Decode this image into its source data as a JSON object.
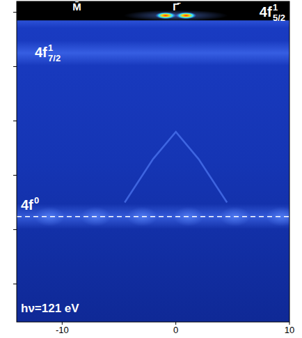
{
  "chart_data": {
    "type": "intensity_map",
    "xlim": [
      -14,
      10
    ],
    "xticks": [
      -10,
      0,
      10
    ],
    "ylim": [
      -5.7,
      0.2
    ],
    "yticks": [
      0,
      -1,
      -2,
      -3,
      -4,
      -5
    ],
    "tick_labels": "x",
    "fermi_edge": -0.15,
    "photon_energy_label": "hν=121 eV",
    "high_symmetry_points": [
      {
        "label": "M̄",
        "x": -8.7
      },
      {
        "label": "Γ̄",
        "x": 0
      }
    ],
    "flat_bands": [
      {
        "base": "4f",
        "sup": "1",
        "sub": "5/2",
        "energy": -0.06
      },
      {
        "base": "4f",
        "sup": "1",
        "sub": "7/2",
        "energy": -0.75
      },
      {
        "base": "4f",
        "sup": "0",
        "energy": -3.76,
        "line_style": "dashed"
      }
    ],
    "hotspots": {
      "x": [
        -0.9,
        0.9
      ],
      "energy": [
        -0.06,
        -0.06
      ]
    },
    "bands": [
      {
        "x": [
          -4.5,
          -2,
          0,
          2,
          4.5
        ],
        "energy": [
          -3.5,
          -2.7,
          -2.2,
          -2.7,
          -3.5
        ]
      }
    ]
  }
}
